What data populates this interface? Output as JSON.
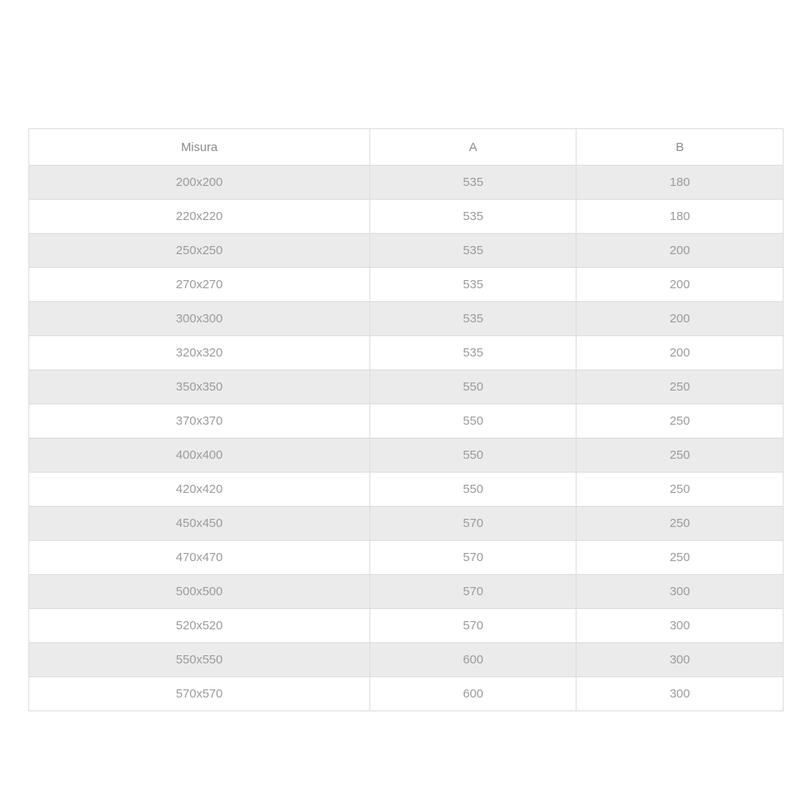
{
  "table": {
    "columns": [
      {
        "key": "misura",
        "label": "Misura"
      },
      {
        "key": "a",
        "label": "A"
      },
      {
        "key": "b",
        "label": "B"
      }
    ],
    "rows": [
      {
        "misura": "200x200",
        "a": "535",
        "b": "180"
      },
      {
        "misura": "220x220",
        "a": "535",
        "b": "180"
      },
      {
        "misura": "250x250",
        "a": "535",
        "b": "200"
      },
      {
        "misura": "270x270",
        "a": "535",
        "b": "200"
      },
      {
        "misura": "300x300",
        "a": "535",
        "b": "200"
      },
      {
        "misura": "320x320",
        "a": "535",
        "b": "200"
      },
      {
        "misura": "350x350",
        "a": "550",
        "b": "250"
      },
      {
        "misura": "370x370",
        "a": "550",
        "b": "250"
      },
      {
        "misura": "400x400",
        "a": "550",
        "b": "250"
      },
      {
        "misura": "420x420",
        "a": "550",
        "b": "250"
      },
      {
        "misura": "450x450",
        "a": "570",
        "b": "250"
      },
      {
        "misura": "470x470",
        "a": "570",
        "b": "250"
      },
      {
        "misura": "500x500",
        "a": "570",
        "b": "300"
      },
      {
        "misura": "520x520",
        "a": "570",
        "b": "300"
      },
      {
        "misura": "550x550",
        "a": "600",
        "b": "300"
      },
      {
        "misura": "570x570",
        "a": "600",
        "b": "300"
      }
    ]
  },
  "colors": {
    "stripe_row_background": "#ebebeb",
    "border": "#dcdcdc",
    "header_text": "#8a8a8a",
    "cell_text": "#9b9b9b",
    "page_background": "#ffffff"
  }
}
